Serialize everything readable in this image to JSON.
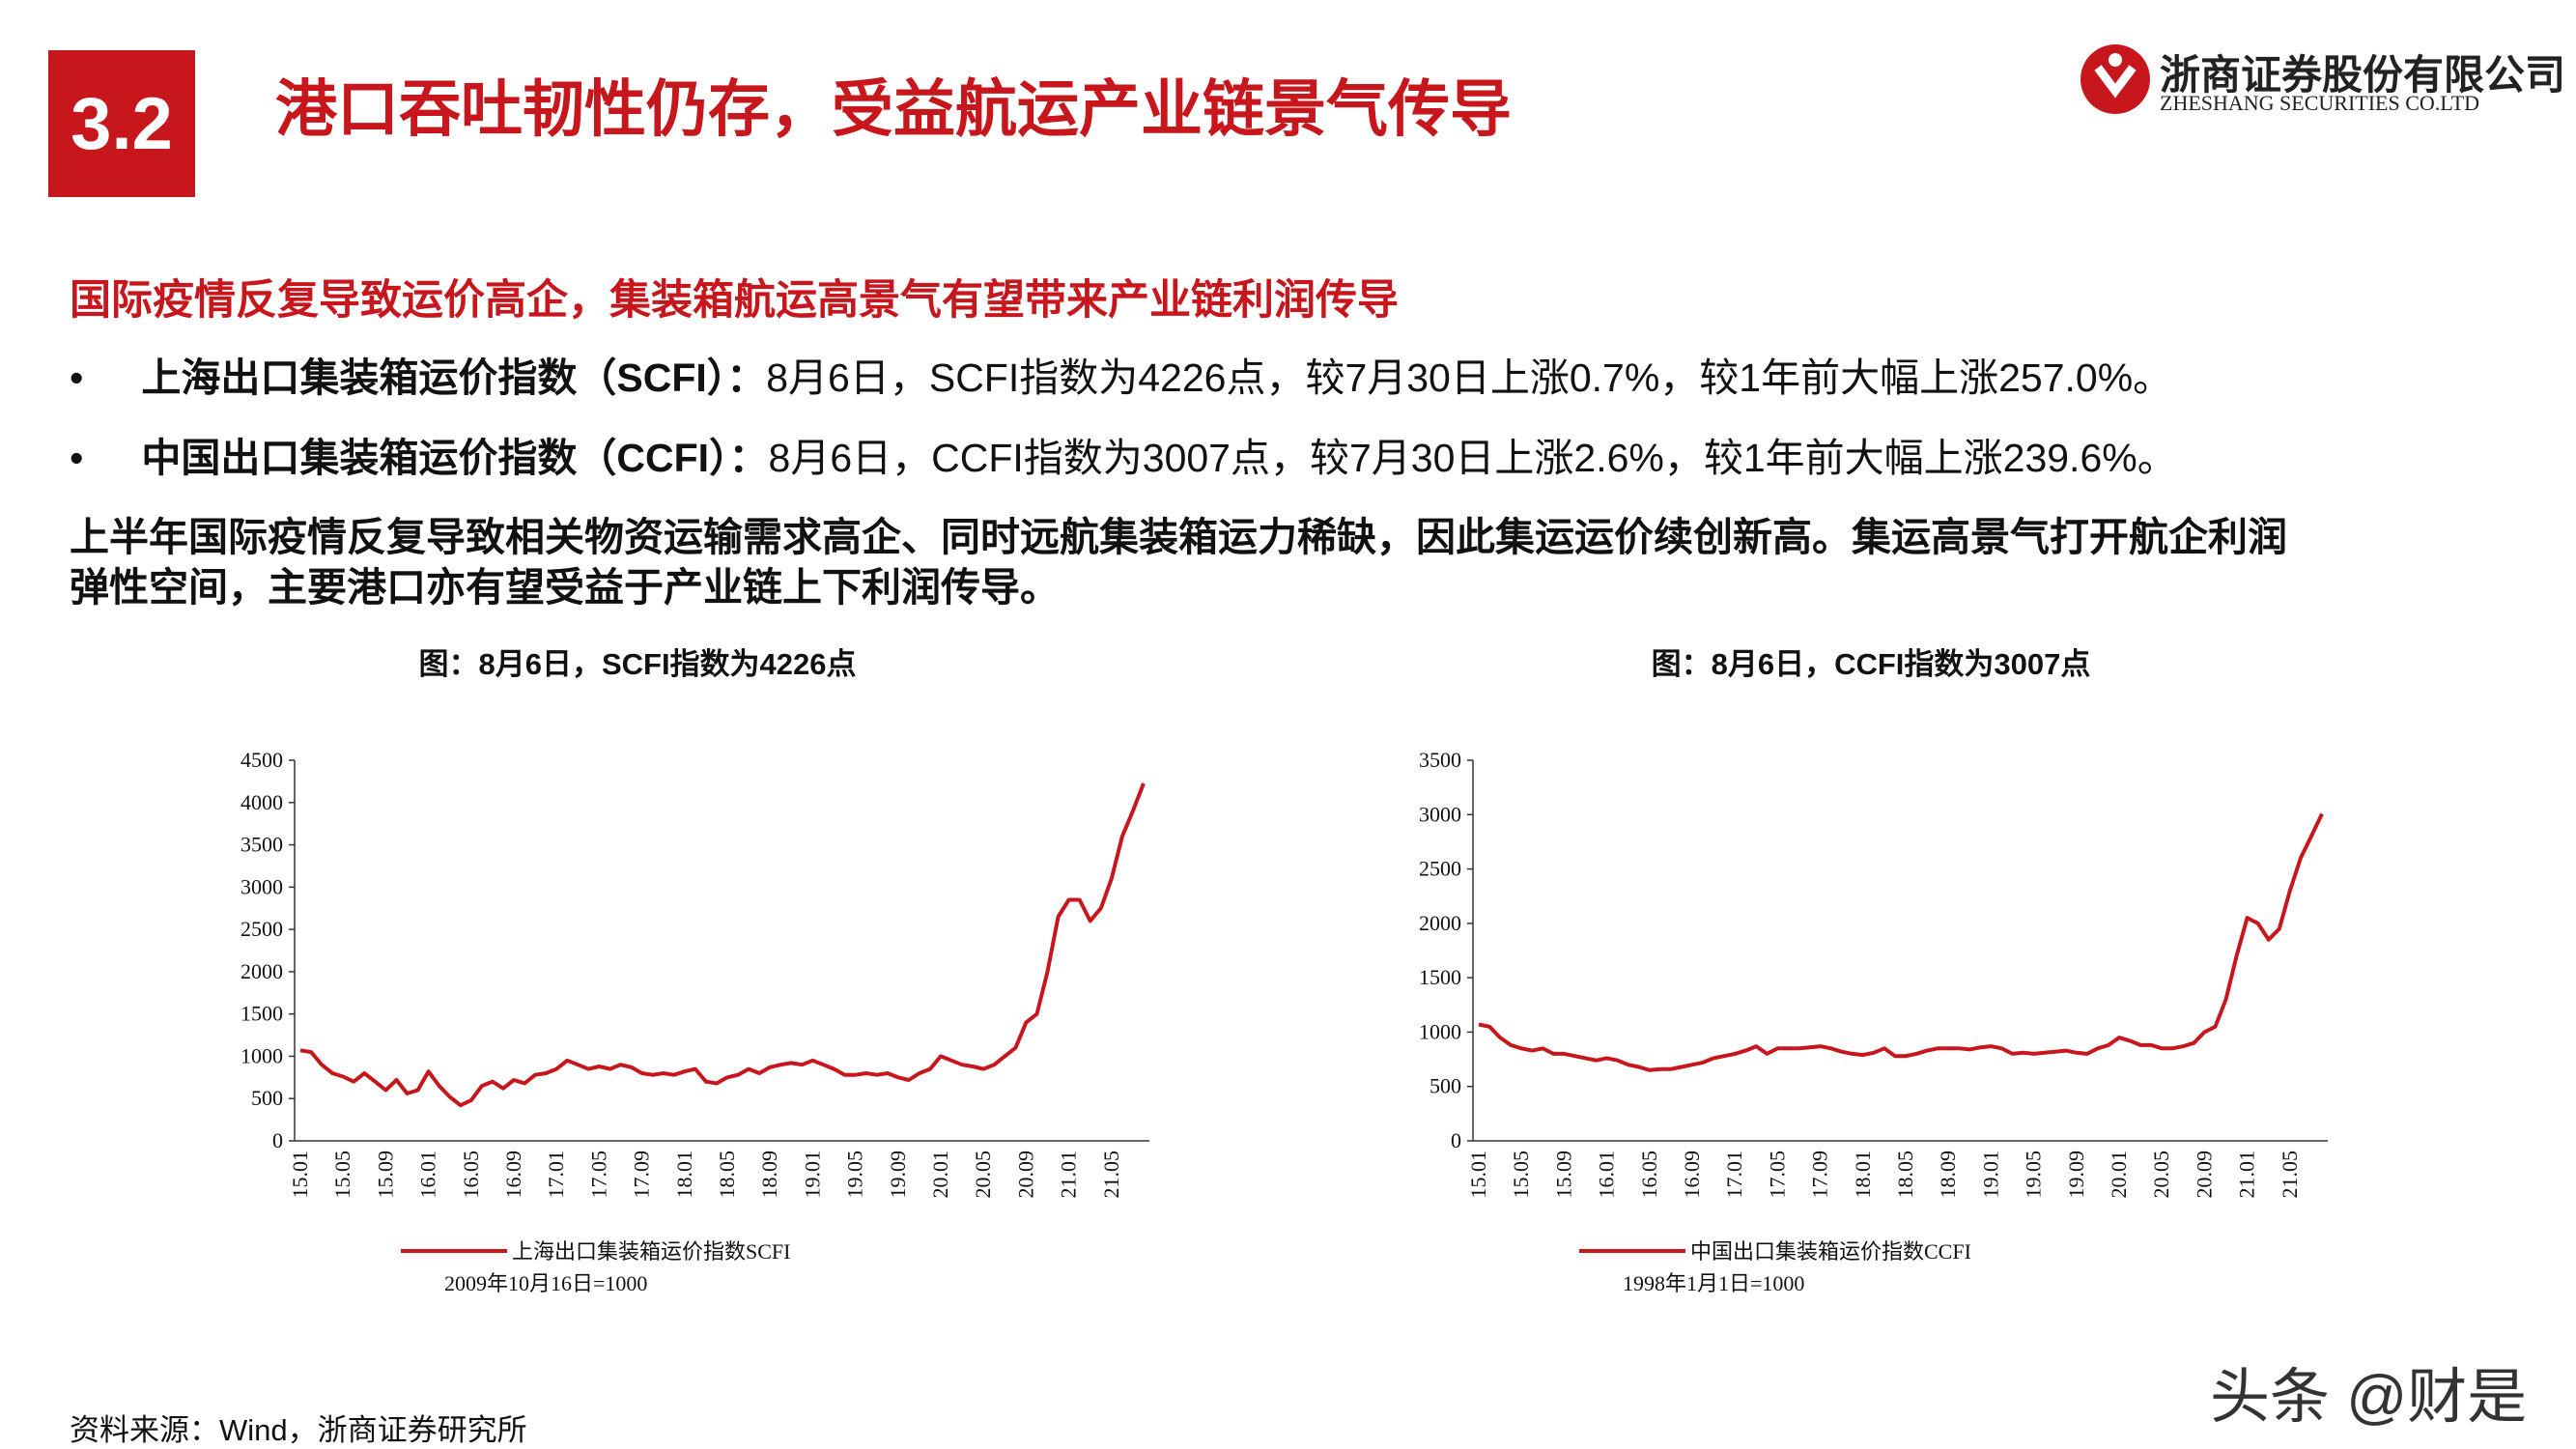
{
  "header": {
    "section": "3.2",
    "title": "港口吞吐韧性仍存，受益航运产业链景气传导",
    "logo_cn": "浙商证券股份有限公司",
    "logo_en": "ZHESHANG SECURITIES CO.LTD"
  },
  "subtitle": "国际疫情反复导致运价高企，集装箱航运高景气有望带来产业链利润传导",
  "bullets": [
    {
      "label": "上海出口集装箱运价指数（SCFI）：",
      "text": "8月6日，SCFI指数为4226点，较7月30日上涨0.7%，较1年前大幅上涨257.0%。"
    },
    {
      "label": "中国出口集装箱运价指数（CCFI）：",
      "text": "8月6日，CCFI指数为3007点，较7月30日上涨2.6%，较1年前大幅上涨239.6%。"
    }
  ],
  "paragraph": [
    "上半年国际疫情反复导致相关物资运输需求高企、同时远航集装箱运力稀缺，因此集运运价续创新高。集运高景气打开航企利润",
    "弹性空间，主要港口亦有望受益于产业链上下利润传导。"
  ],
  "source": "资料来源：Wind，浙商证券研究所",
  "watermark": "头条 @财是",
  "chart_data": [
    {
      "type": "line",
      "title": "图：8月6日，SCFI指数为4226点",
      "note": "2009年10月16日=1000",
      "categories": [
        "15.01",
        null,
        null,
        null,
        "15.05",
        null,
        null,
        null,
        "15.09",
        null,
        null,
        null,
        "16.01",
        null,
        null,
        null,
        "16.05",
        null,
        null,
        null,
        "16.09",
        null,
        null,
        null,
        "17.01",
        null,
        null,
        null,
        "17.05",
        null,
        null,
        null,
        "17.09",
        null,
        null,
        null,
        "18.01",
        null,
        null,
        null,
        "18.05",
        null,
        null,
        null,
        "18.09",
        null,
        null,
        null,
        "19.01",
        null,
        null,
        null,
        "19.05",
        null,
        null,
        null,
        "19.09",
        null,
        null,
        null,
        "20.01",
        null,
        null,
        null,
        "20.05",
        null,
        null,
        null,
        "20.09",
        null,
        null,
        null,
        "21.01",
        null,
        null,
        null,
        "21.05",
        null,
        null,
        null
      ],
      "series": [
        {
          "name": "上海出口集装箱运价指数SCFI",
          "color": "#c8161d",
          "values": [
            1070,
            1050,
            900,
            800,
            760,
            700,
            800,
            700,
            600,
            720,
            560,
            600,
            820,
            650,
            520,
            420,
            480,
            650,
            700,
            620,
            720,
            680,
            780,
            800,
            850,
            950,
            900,
            850,
            880,
            850,
            900,
            870,
            800,
            780,
            800,
            780,
            820,
            850,
            700,
            680,
            750,
            780,
            850,
            800,
            870,
            900,
            920,
            900,
            950,
            900,
            850,
            780,
            780,
            800,
            780,
            800,
            750,
            720,
            800,
            850,
            1000,
            950,
            900,
            880,
            850,
            900,
            1000,
            1100,
            1400,
            1500,
            2000,
            2650,
            2850,
            2850,
            2600,
            2750,
            3100,
            3600,
            3900,
            4226
          ]
        }
      ],
      "ylim": [
        0,
        4500
      ],
      "yticks": [
        0,
        500,
        1000,
        1500,
        2000,
        2500,
        3000,
        3500,
        4000,
        4500
      ]
    },
    {
      "type": "line",
      "title": "图：8月6日，CCFI指数为3007点",
      "note": "1998年1月1日=1000",
      "categories": [
        "15.01",
        null,
        null,
        null,
        "15.05",
        null,
        null,
        null,
        "15.09",
        null,
        null,
        null,
        "16.01",
        null,
        null,
        null,
        "16.05",
        null,
        null,
        null,
        "16.09",
        null,
        null,
        null,
        "17.01",
        null,
        null,
        null,
        "17.05",
        null,
        null,
        null,
        "17.09",
        null,
        null,
        null,
        "18.01",
        null,
        null,
        null,
        "18.05",
        null,
        null,
        null,
        "18.09",
        null,
        null,
        null,
        "19.01",
        null,
        null,
        null,
        "19.05",
        null,
        null,
        null,
        "19.09",
        null,
        null,
        null,
        "20.01",
        null,
        null,
        null,
        "20.05",
        null,
        null,
        null,
        "20.09",
        null,
        null,
        null,
        "21.01",
        null,
        null,
        null,
        "21.05",
        null,
        null,
        null
      ],
      "series": [
        {
          "name": "中国出口集装箱运价指数CCFI",
          "color": "#c8161d",
          "values": [
            1070,
            1050,
            950,
            880,
            850,
            830,
            850,
            800,
            800,
            780,
            760,
            740,
            760,
            740,
            700,
            680,
            650,
            660,
            660,
            680,
            700,
            720,
            760,
            780,
            800,
            830,
            870,
            800,
            850,
            850,
            850,
            860,
            870,
            850,
            820,
            800,
            790,
            810,
            850,
            780,
            780,
            800,
            830,
            850,
            850,
            850,
            840,
            860,
            870,
            850,
            800,
            810,
            800,
            810,
            820,
            830,
            810,
            800,
            850,
            880,
            950,
            920,
            880,
            880,
            850,
            850,
            870,
            900,
            1000,
            1050,
            1300,
            1700,
            2050,
            2000,
            1850,
            1950,
            2300,
            2600,
            2800,
            3007
          ]
        }
      ],
      "ylim": [
        0,
        3500
      ],
      "yticks": [
        0,
        500,
        1000,
        1500,
        2000,
        2500,
        3000,
        3500
      ]
    }
  ]
}
